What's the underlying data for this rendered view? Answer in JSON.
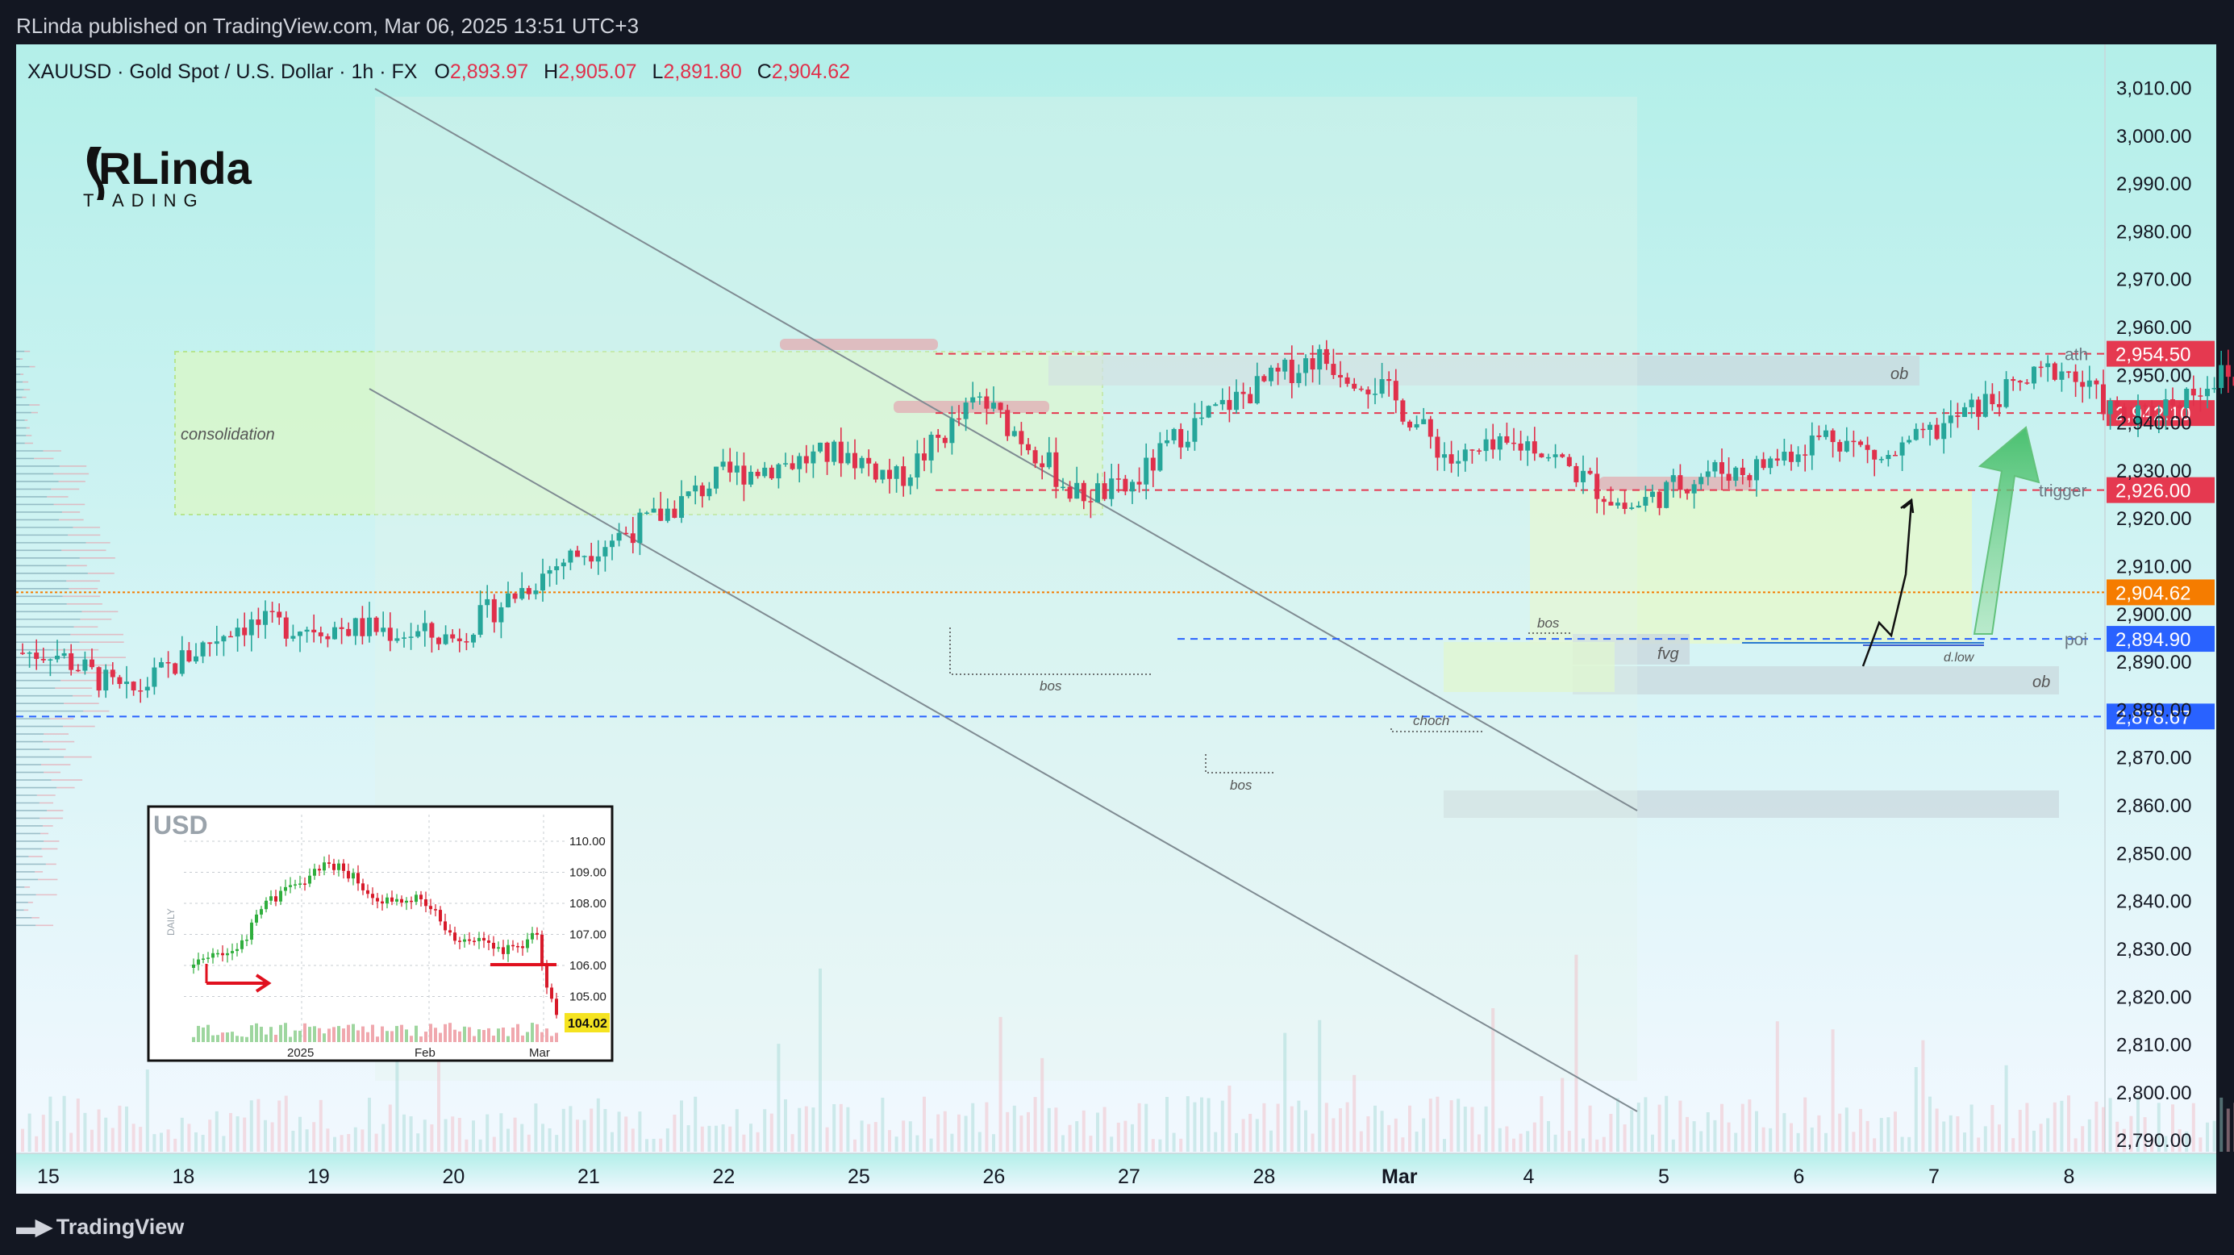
{
  "header": {
    "published": "RLinda published on TradingView.com, Mar 06, 2025 13:51 UTC+3"
  },
  "footer": {
    "brand": "TradingView"
  },
  "legend": {
    "symbol": "XAUUSD · Gold Spot / U.S. Dollar · 1h · FX",
    "o_label": "O",
    "o_value": "2,893.97",
    "h_label": "H",
    "h_value": "2,905.07",
    "l_label": "L",
    "l_value": "2,891.80",
    "c_label": "C",
    "c_value": "2,904.62"
  },
  "logo": {
    "line1": "RLinda",
    "line2": "T  ADING"
  },
  "colors": {
    "background_top": "#b3efe9",
    "background_bottom": "#f2f8ff",
    "bull": "#26a69a",
    "bear": "#e0304b",
    "red_level": "#e53950",
    "blue_level": "#2962ff",
    "orange_level": "#f57c00"
  },
  "chart_data": {
    "type": "candlestick",
    "ylim": [
      2787,
      3018
    ],
    "yticks": [
      "3,010.00",
      "3,000.00",
      "2,990.00",
      "2,980.00",
      "2,970.00",
      "2,960.00",
      "2,950.00",
      "2,940.00",
      "2,930.00",
      "2,920.00",
      "2,910.00",
      "2,900.00",
      "2,890.00",
      "2,880.00",
      "2,870.00",
      "2,860.00",
      "2,850.00",
      "2,840.00",
      "2,830.00",
      "2,820.00",
      "2,810.00",
      "2,800.00",
      "2,790.00"
    ],
    "ytick_values": [
      3010,
      3000,
      2990,
      2980,
      2970,
      2960,
      2950,
      2940,
      2930,
      2920,
      2910,
      2900,
      2890,
      2880,
      2870,
      2860,
      2850,
      2840,
      2830,
      2820,
      2810,
      2800,
      2790
    ],
    "xticks": [
      "15",
      "18",
      "19",
      "20",
      "21",
      "22",
      "25",
      "26",
      "27",
      "28",
      "Mar",
      "4",
      "5",
      "6",
      "7",
      "8"
    ],
    "price_levels": [
      {
        "label": "ath",
        "price": 2954.5,
        "text": "2,954.50",
        "color": "red"
      },
      {
        "label": "",
        "price": 2942.1,
        "text": "2,942.10",
        "color": "red"
      },
      {
        "label": "trigger",
        "price": 2926.0,
        "text": "2,926.00",
        "color": "red"
      },
      {
        "label": "",
        "price": 2904.62,
        "text": "2,904.62",
        "color": "orange"
      },
      {
        "label": "poi",
        "price": 2894.9,
        "text": "2,894.90",
        "color": "blue"
      },
      {
        "label": "",
        "price": 2878.67,
        "text": "2,878.67",
        "color": "blue"
      }
    ],
    "annotations": [
      "consolidation",
      "ob",
      "bos",
      "bos",
      "choch",
      "bos",
      "fvg",
      "d.low",
      "ob"
    ],
    "path": [
      [
        0,
        2893
      ],
      [
        0.6,
        2883
      ],
      [
        1.4,
        2898
      ],
      [
        2.4,
        2897
      ],
      [
        3,
        2895
      ],
      [
        3.8,
        2911
      ],
      [
        4.5,
        2920
      ],
      [
        5,
        2929
      ],
      [
        5.9,
        2934
      ],
      [
        6.3,
        2928
      ],
      [
        6.9,
        2945
      ],
      [
        7.3,
        2935
      ],
      [
        7.6,
        2925
      ],
      [
        8,
        2926
      ],
      [
        8.4,
        2938
      ],
      [
        8.8,
        2945
      ],
      [
        9.4,
        2954
      ],
      [
        9.9,
        2947
      ],
      [
        10.4,
        2932
      ],
      [
        11,
        2936
      ],
      [
        11.7,
        2922
      ],
      [
        12.3,
        2930
      ],
      [
        12.6,
        2930
      ],
      [
        13.2,
        2938
      ],
      [
        13.6,
        2932
      ],
      [
        14.2,
        2942
      ],
      [
        14.9,
        2952
      ],
      [
        15.4,
        2940
      ],
      [
        16.1,
        2950
      ],
      [
        16.4,
        2944
      ],
      [
        16.9,
        2929
      ],
      [
        17.4,
        2905
      ],
      [
        17.8,
        2895
      ],
      [
        18.2,
        2915
      ],
      [
        18.5,
        2925
      ],
      [
        19.1,
        2920
      ],
      [
        19.6,
        2913
      ],
      [
        20.3,
        2916
      ],
      [
        20.9,
        2920
      ],
      [
        21.4,
        2903
      ],
      [
        21.7,
        2895
      ],
      [
        22.3,
        2883
      ],
      [
        22.8,
        2870
      ],
      [
        23.1,
        2890
      ],
      [
        23.5,
        2875
      ],
      [
        24,
        2868
      ],
      [
        24.3,
        2858
      ],
      [
        24.8,
        2860
      ],
      [
        25.1,
        2832
      ],
      [
        25.4,
        2845
      ],
      [
        26.1,
        2877
      ],
      [
        26.6,
        2863
      ],
      [
        27,
        2872
      ],
      [
        27.3,
        2878
      ],
      [
        27.8,
        2886
      ],
      [
        28.1,
        2886
      ],
      [
        28.5,
        2885
      ],
      [
        28.8,
        2893
      ],
      [
        29.1,
        2912
      ],
      [
        29.4,
        2922
      ],
      [
        29.7,
        2925
      ],
      [
        30.1,
        2905
      ],
      [
        30.4,
        2918
      ],
      [
        30.8,
        2922
      ],
      [
        31.3,
        2908
      ],
      [
        31.8,
        2920
      ],
      [
        32.2,
        2912
      ],
      [
        32.5,
        2898
      ],
      [
        32.8,
        2912
      ],
      [
        33.1,
        2922
      ],
      [
        33.5,
        2925
      ],
      [
        33.9,
        2910
      ],
      [
        34.3,
        2913
      ],
      [
        34.5,
        2900
      ],
      [
        34.75,
        2892
      ]
    ],
    "inset": {
      "title": "USD",
      "side_label": "DAILY",
      "ylabels": [
        "110.00",
        "109.00",
        "108.00",
        "107.00",
        "106.00",
        "105.00"
      ],
      "last_value": "104.02",
      "xlabels": [
        "2025",
        "Feb",
        "Mar"
      ]
    }
  }
}
